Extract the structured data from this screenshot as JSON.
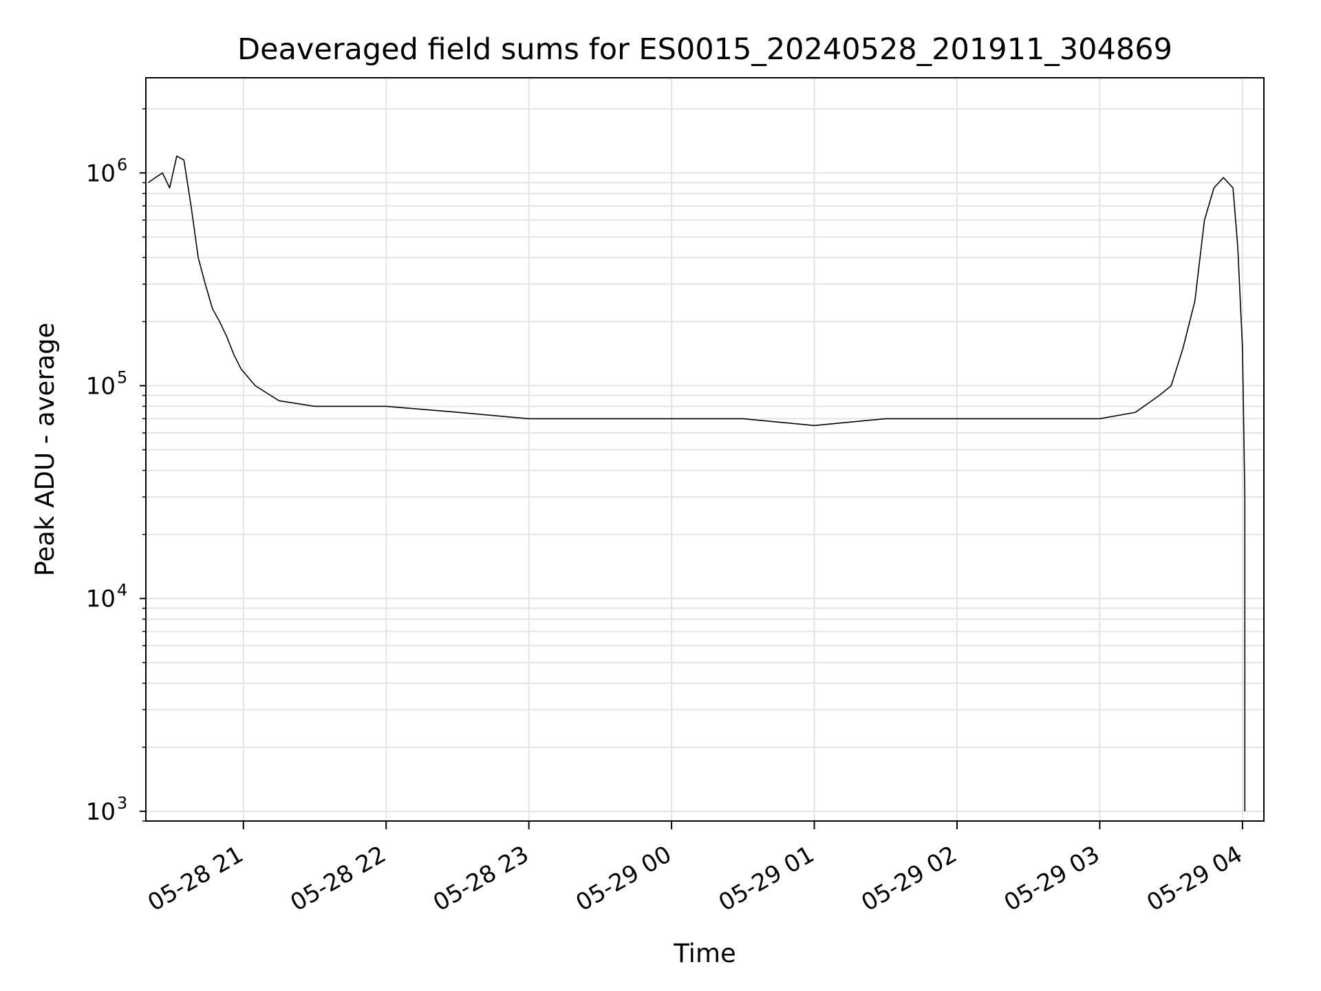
{
  "chart_data": {
    "type": "line",
    "title": "Deaveraged field sums for ES0015_20240528_201911_304869",
    "xlabel": "Time",
    "ylabel": "Peak ADU - average",
    "yscale": "log",
    "ylim": [
      900,
      2800000
    ],
    "xlim": [
      "2024-05-28 20:19",
      "2024-05-29 04:09"
    ],
    "grid": true,
    "x_ticks": [
      {
        "value": "2024-05-28 21:00",
        "label": "05-28 21"
      },
      {
        "value": "2024-05-28 22:00",
        "label": "05-28 22"
      },
      {
        "value": "2024-05-28 23:00",
        "label": "05-28 23"
      },
      {
        "value": "2024-05-29 00:00",
        "label": "05-29 00"
      },
      {
        "value": "2024-05-29 01:00",
        "label": "05-29 01"
      },
      {
        "value": "2024-05-29 02:00",
        "label": "05-29 02"
      },
      {
        "value": "2024-05-29 03:00",
        "label": "05-29 03"
      },
      {
        "value": "2024-05-29 04:00",
        "label": "05-29 04"
      }
    ],
    "y_ticks": [
      {
        "value": 1000,
        "base": "10",
        "exp": "3"
      },
      {
        "value": 10000,
        "base": "10",
        "exp": "4"
      },
      {
        "value": 100000,
        "base": "10",
        "exp": "5"
      },
      {
        "value": 1000000,
        "base": "10",
        "exp": "6"
      }
    ],
    "series": [
      {
        "color": "#000000",
        "x": [
          "2024-05-28 20:20",
          "2024-05-28 20:23",
          "2024-05-28 20:26",
          "2024-05-28 20:29",
          "2024-05-28 20:32",
          "2024-05-28 20:35",
          "2024-05-28 20:38",
          "2024-05-28 20:41",
          "2024-05-28 20:44",
          "2024-05-28 20:47",
          "2024-05-28 20:50",
          "2024-05-28 20:53",
          "2024-05-28 20:56",
          "2024-05-28 20:59",
          "2024-05-28 21:05",
          "2024-05-28 21:15",
          "2024-05-28 21:30",
          "2024-05-28 22:00",
          "2024-05-28 22:30",
          "2024-05-28 23:00",
          "2024-05-28 23:30",
          "2024-05-29 00:00",
          "2024-05-29 00:30",
          "2024-05-29 01:00",
          "2024-05-29 01:30",
          "2024-05-29 02:00",
          "2024-05-29 02:30",
          "2024-05-29 03:00",
          "2024-05-29 03:15",
          "2024-05-29 03:25",
          "2024-05-29 03:30",
          "2024-05-29 03:35",
          "2024-05-29 03:40",
          "2024-05-29 03:44",
          "2024-05-29 03:48",
          "2024-05-29 03:52",
          "2024-05-29 03:56",
          "2024-05-29 03:58",
          "2024-05-29 04:00",
          "2024-05-29 04:01",
          "2024-05-29 04:01"
        ],
        "y": [
          900000,
          950000,
          1000000,
          850000,
          1200000,
          1150000,
          700000,
          400000,
          300000,
          230000,
          200000,
          170000,
          140000,
          120000,
          100000,
          85000,
          80000,
          80000,
          75000,
          70000,
          70000,
          70000,
          70000,
          65000,
          70000,
          70000,
          70000,
          70000,
          75000,
          90000,
          100000,
          150000,
          250000,
          600000,
          850000,
          950000,
          850000,
          450000,
          150000,
          30000,
          1000
        ]
      }
    ]
  }
}
